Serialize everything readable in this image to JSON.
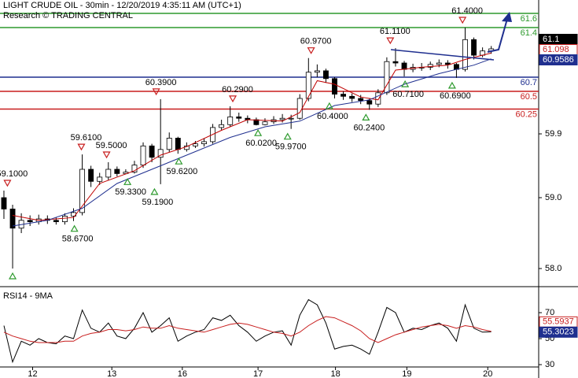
{
  "chart_data": [
    {
      "type": "candlestick",
      "title": "LIGHT CRUDE OIL - 30min - 12/20/2019 4:35:11 AM (UTC+1)",
      "subtitle": "Research © TRADING CENTRAL",
      "xlim": [
        -0.45,
        61.45
      ],
      "ylim": [
        57.7889,
        61.7889
      ],
      "yticks": [
        {
          "value": 58,
          "label": "58.0"
        },
        {
          "value": 59,
          "label": "59.0"
        },
        59.9
      ],
      "up_color": "#ffffff",
      "down_color": "#000000",
      "open": [
        59.0,
        58.84,
        58.57,
        58.68,
        58.66,
        58.7,
        58.68,
        58.66,
        58.74,
        58.79,
        59.4,
        59.23,
        59.29,
        59.4,
        59.34,
        59.36,
        59.46,
        59.73,
        59.57,
        59.68,
        59.84,
        59.68,
        59.73,
        59.76,
        59.79,
        59.99,
        60.03,
        60.14,
        60.12,
        60.1,
        60.03,
        60.07,
        60.1,
        60.12,
        60.12,
        60.4,
        60.77,
        60.79,
        60.68,
        60.46,
        60.43,
        60.4,
        60.37,
        60.32,
        60.48,
        60.92,
        60.9,
        60.81,
        60.84,
        60.84,
        60.88,
        60.9,
        60.88,
        60.81,
        61.23,
        61.01,
        61.07
      ],
      "high": [
        59.1,
        58.9,
        58.78,
        58.75,
        58.76,
        58.75,
        58.72,
        58.78,
        58.85,
        59.61,
        59.45,
        59.35,
        59.5,
        59.44,
        59.4,
        59.52,
        59.78,
        59.76,
        60.39,
        59.92,
        59.86,
        59.78,
        59.8,
        59.84,
        60.04,
        60.1,
        60.29,
        60.2,
        60.16,
        60.13,
        60.12,
        60.15,
        60.18,
        60.17,
        60.46,
        60.97,
        60.88,
        60.82,
        60.7,
        60.5,
        60.47,
        60.45,
        60.4,
        60.53,
        60.98,
        61.11,
        60.93,
        60.89,
        60.9,
        60.92,
        60.95,
        60.94,
        60.9,
        61.4,
        61.26,
        61.12,
        61.14
      ],
      "low": [
        58.7,
        58.0,
        58.5,
        58.6,
        58.62,
        58.63,
        58.62,
        58.62,
        58.67,
        58.75,
        59.15,
        59.18,
        59.25,
        59.3,
        59.33,
        59.34,
        59.42,
        59.5,
        59.19,
        59.64,
        59.62,
        59.65,
        59.7,
        59.72,
        59.76,
        59.95,
        60.0,
        60.07,
        60.05,
        60.02,
        60.02,
        60.04,
        60.06,
        59.97,
        60.1,
        60.36,
        60.7,
        60.62,
        60.4,
        60.38,
        60.35,
        60.32,
        60.24,
        60.28,
        60.45,
        60.85,
        60.71,
        60.77,
        60.79,
        60.8,
        60.84,
        60.82,
        60.69,
        60.78,
        60.95,
        60.98,
        61.03
      ],
      "close": [
        58.84,
        58.57,
        58.68,
        58.66,
        58.7,
        58.68,
        58.66,
        58.74,
        58.79,
        59.4,
        59.23,
        59.29,
        59.4,
        59.34,
        59.36,
        59.46,
        59.73,
        59.57,
        59.68,
        59.84,
        59.68,
        59.73,
        59.76,
        59.79,
        59.99,
        60.03,
        60.14,
        60.12,
        60.1,
        60.03,
        60.07,
        60.1,
        60.12,
        60.12,
        60.4,
        60.77,
        60.79,
        60.68,
        60.46,
        60.43,
        60.4,
        60.37,
        60.32,
        60.48,
        60.92,
        60.9,
        60.81,
        60.84,
        60.84,
        60.88,
        60.9,
        60.88,
        60.81,
        61.23,
        61.01,
        61.07,
        61.1
      ],
      "overlays": [
        {
          "color": "#c00000",
          "x": [
            1,
            4,
            8,
            11,
            15,
            18,
            21,
            25,
            28,
            32,
            34,
            36,
            38,
            41,
            43,
            45,
            48,
            51,
            53,
            56
          ],
          "values": [
            58.75,
            58.68,
            58.72,
            59.2,
            59.38,
            59.6,
            59.72,
            59.95,
            60.1,
            60.08,
            60.2,
            60.65,
            60.6,
            60.42,
            60.38,
            60.8,
            60.84,
            60.87,
            60.95,
            61.04
          ]
        },
        {
          "color": "#1f2f8f",
          "x": [
            1,
            5,
            9,
            13,
            18,
            22,
            26,
            30,
            34,
            38,
            42,
            46,
            50,
            54,
            56
          ],
          "values": [
            58.6,
            58.68,
            58.85,
            59.2,
            59.45,
            59.65,
            59.85,
            60.0,
            60.08,
            60.3,
            60.38,
            60.6,
            60.75,
            60.87,
            60.9586
          ]
        }
      ],
      "levels": [
        {
          "value": 61.6,
          "color": "#2e9a2e"
        },
        {
          "value": 61.4,
          "color": "#2e9a2e"
        },
        {
          "value": 60.7,
          "color": "#1f2f8f"
        },
        {
          "value": 60.5,
          "color": "#c81e1e"
        },
        {
          "value": 60.25,
          "color": "#c81e1e"
        }
      ],
      "highs": [
        {
          "value": 59.1,
          "label": "59.1000",
          "x": 0.4
        },
        {
          "value": 59.61,
          "label": "59.6100",
          "x": 8.9
        },
        {
          "value": 59.5,
          "label": "59.5000",
          "x": 11.8
        },
        {
          "value": 60.39,
          "label": "60.3900",
          "x": 17.5
        },
        {
          "value": 60.29,
          "label": "60.2900",
          "x": 26.3
        },
        {
          "value": 60.97,
          "label": "60.9700",
          "x": 35.3
        },
        {
          "value": 61.11,
          "label": "61.1100",
          "x": 44.4
        },
        {
          "value": 61.4,
          "label": "61.4000",
          "x": 52.7
        }
      ],
      "lows": [
        {
          "value": 58.0,
          "x": 1
        },
        {
          "value": 58.67,
          "label": "58.6700",
          "x": 8.1
        },
        {
          "value": 59.33,
          "label": "59.3300",
          "x": 14.2
        },
        {
          "value": 59.19,
          "label": "59.1900",
          "x": 17.3
        },
        {
          "value": 59.62,
          "label": "59.6200",
          "x": 20.1
        },
        {
          "value": 60.02,
          "label": "60.0200",
          "x": 29.2
        },
        {
          "value": 59.97,
          "label": "59.9700",
          "x": 32.6
        },
        {
          "value": 60.4,
          "label": "60.4000",
          "x": 37.4
        },
        {
          "value": 60.24,
          "label": "60.2400",
          "x": 41.6
        },
        {
          "value": 60.71,
          "label": "60.7100",
          "x": 46.1
        },
        {
          "value": 60.69,
          "label": "60.6900",
          "x": 51.5
        }
      ],
      "price_tags": [
        {
          "value": 61.1,
          "color": "#000000"
        },
        {
          "value": 61.098,
          "color": "#c81e1e"
        },
        {
          "value": 60.9586,
          "color": "#1f2f8f"
        }
      ]
    },
    {
      "type": "line",
      "title": "RSI14 - 9MA",
      "xlim": [
        -0.45,
        61.45
      ],
      "ylim": [
        28.8,
        88.2
      ],
      "yticks": [
        30,
        50,
        70
      ],
      "xticks": [
        {
          "value": 3.3,
          "label": "12"
        },
        {
          "value": 12.4,
          "label": "13"
        },
        {
          "value": 20.5,
          "label": "16"
        },
        {
          "value": 29.2,
          "label": "17"
        },
        {
          "value": 38.1,
          "label": "18"
        },
        {
          "value": 46.3,
          "label": "19"
        },
        {
          "value": 55.6,
          "label": "20"
        }
      ],
      "series": [
        {
          "color": "#000000",
          "values": [
            60,
            32,
            48,
            45,
            50,
            47,
            46,
            52,
            50,
            72,
            58,
            55,
            62,
            52,
            50,
            58,
            70,
            55,
            60,
            66,
            48,
            52,
            55,
            57,
            66,
            64,
            68,
            60,
            55,
            48,
            52,
            55,
            56,
            45,
            68,
            80,
            76,
            62,
            42,
            44,
            45,
            42,
            38,
            55,
            74,
            70,
            55,
            58,
            57,
            60,
            62,
            58,
            48,
            76,
            58,
            55,
            55.3023
          ]
        },
        {
          "color": "#c81e1e",
          "values": [
            55,
            52,
            50,
            48,
            47,
            47,
            47,
            48,
            48,
            52,
            54,
            55,
            57,
            57,
            56,
            57,
            59,
            58,
            58,
            60,
            58,
            57,
            56,
            55,
            57,
            59,
            61,
            62,
            61,
            59,
            57,
            55,
            54,
            52,
            55,
            60,
            64,
            67,
            66,
            63,
            60,
            56,
            50,
            47,
            50,
            53,
            55,
            57,
            59,
            60,
            61,
            60,
            58,
            60,
            59,
            57,
            55.5937
          ]
        }
      ],
      "price_tags": [
        {
          "value": 55.5937,
          "color": "#c81e1e"
        },
        {
          "value": 55.3023,
          "color": "#1f2f8f"
        }
      ]
    }
  ]
}
